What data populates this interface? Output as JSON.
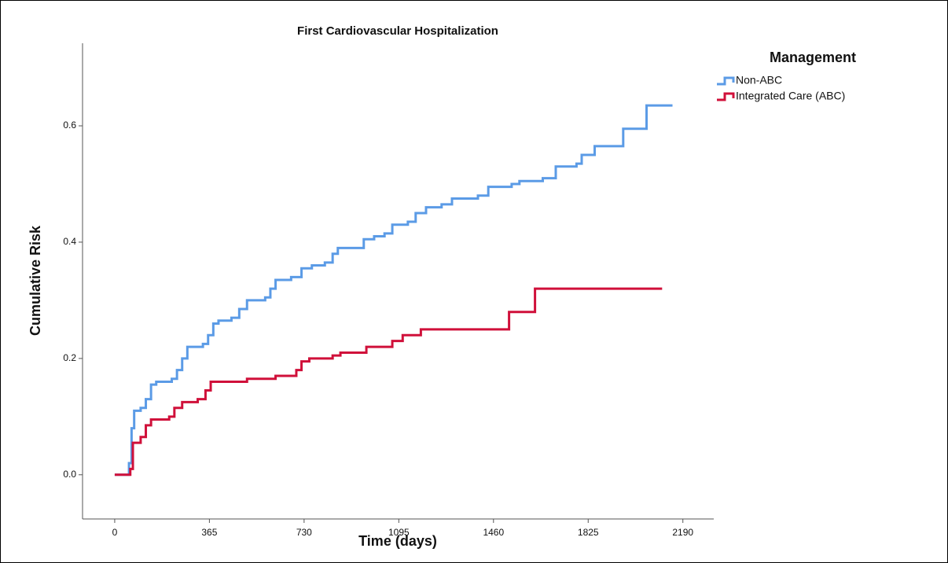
{
  "chart_data": {
    "type": "line",
    "step": "post",
    "title": "First Cardiovascular Hospitalization",
    "x_label": "Time (days)",
    "y_label": "Cumulative Risk",
    "legend_title": "Management",
    "legend_position": "right",
    "xlim": [
      -124,
      2309
    ],
    "xticks": [
      0,
      365,
      730,
      1095,
      1460,
      1825,
      2190
    ],
    "ylim": [
      -0.076,
      0.742
    ],
    "yticks": [
      {
        "value": 0,
        "label": "0.0"
      },
      0.2,
      0.4,
      0.6
    ],
    "series": [
      {
        "name": "Non-ABC",
        "color": "#5b9be6",
        "x": [
          0,
          45,
          55,
          65,
          75,
          100,
          120,
          140,
          160,
          220,
          240,
          260,
          280,
          340,
          360,
          380,
          400,
          450,
          480,
          510,
          580,
          600,
          620,
          680,
          720,
          760,
          810,
          840,
          860,
          930,
          960,
          1000,
          1040,
          1070,
          1130,
          1160,
          1200,
          1260,
          1300,
          1400,
          1440,
          1530,
          1560,
          1650,
          1700,
          1780,
          1800,
          1850,
          1960,
          2050,
          2150
        ],
        "values": [
          0,
          0,
          0.02,
          0.08,
          0.11,
          0.115,
          0.13,
          0.155,
          0.16,
          0.165,
          0.18,
          0.2,
          0.22,
          0.225,
          0.24,
          0.26,
          0.265,
          0.27,
          0.285,
          0.3,
          0.305,
          0.32,
          0.335,
          0.34,
          0.355,
          0.36,
          0.365,
          0.38,
          0.39,
          0.39,
          0.405,
          0.41,
          0.415,
          0.43,
          0.435,
          0.45,
          0.46,
          0.465,
          0.475,
          0.48,
          0.495,
          0.5,
          0.505,
          0.51,
          0.53,
          0.535,
          0.55,
          0.565,
          0.595,
          0.635,
          0.635
        ]
      },
      {
        "name": "Integrated Care (ABC)",
        "color": "#d0103a",
        "x": [
          0,
          50,
          60,
          70,
          100,
          120,
          140,
          210,
          230,
          260,
          320,
          350,
          370,
          510,
          620,
          700,
          720,
          750,
          840,
          870,
          970,
          1070,
          1110,
          1180,
          1520,
          1620,
          2110
        ],
        "values": [
          0,
          0,
          0.01,
          0.055,
          0.065,
          0.085,
          0.095,
          0.1,
          0.115,
          0.125,
          0.13,
          0.145,
          0.16,
          0.165,
          0.17,
          0.18,
          0.195,
          0.2,
          0.205,
          0.21,
          0.22,
          0.23,
          0.24,
          0.25,
          0.28,
          0.32,
          0.32
        ]
      }
    ]
  }
}
